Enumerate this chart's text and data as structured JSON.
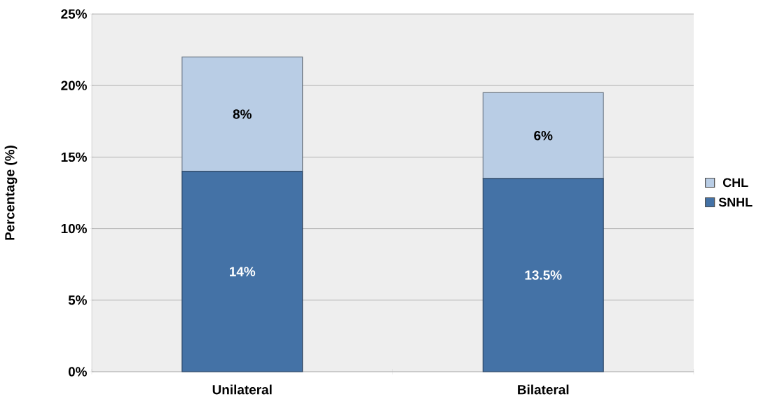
{
  "chart_data": {
    "type": "bar",
    "stacked": true,
    "ylabel": "Percentage (%)",
    "categories": [
      "Unilateral",
      "Bilateral"
    ],
    "series": [
      {
        "name": "SNHL",
        "color": "#4472a6",
        "values": [
          14,
          13.5
        ],
        "value_labels": [
          "14%",
          "13.5%"
        ]
      },
      {
        "name": "CHL",
        "color": "#b9cde5",
        "values": [
          8,
          6
        ],
        "value_labels": [
          "8%",
          "6%"
        ]
      }
    ],
    "ylim": [
      0,
      25
    ],
    "yticks": [
      {
        "value": 0,
        "label": "0%"
      },
      {
        "value": 5,
        "label": "5%"
      },
      {
        "value": 10,
        "label": "10%"
      },
      {
        "value": 15,
        "label": "15%"
      },
      {
        "value": 20,
        "label": "20%"
      },
      {
        "value": 25,
        "label": "25%"
      }
    ],
    "grid": "y",
    "legend": "right"
  }
}
